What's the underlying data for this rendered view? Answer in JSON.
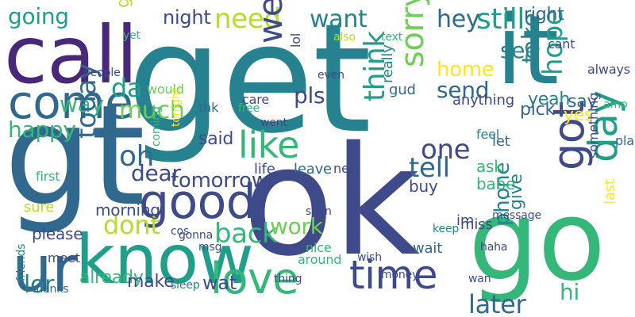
{
  "palette": [
    "#440154",
    "#482878",
    "#3e4a89",
    "#31688e",
    "#26828e",
    "#1f9e89",
    "#35b779",
    "#6ece58",
    "#b5de2b",
    "#fde725"
  ],
  "words": [
    {
      "text": "get",
      "c": "#26828e"
    },
    {
      "text": "gt",
      "c": "#31688e"
    },
    {
      "text": "ok",
      "c": "#3e4a89"
    },
    {
      "text": "call",
      "c": "#482878"
    },
    {
      "text": "it",
      "c": "#26828e"
    },
    {
      "text": "go",
      "c": "#35b779"
    },
    {
      "text": "know",
      "c": "#1f9e89"
    },
    {
      "text": "ur",
      "c": "#31688e"
    },
    {
      "text": "good",
      "c": "#3e4a89"
    },
    {
      "text": "come",
      "c": "#31688e"
    },
    {
      "text": "time",
      "c": "#3e4a89"
    },
    {
      "text": "love",
      "c": "#35b779"
    },
    {
      "text": "got",
      "c": "#3e4a89"
    },
    {
      "text": "day",
      "c": "#1f9e89"
    },
    {
      "text": "like",
      "c": "#35b779"
    },
    {
      "text": "going",
      "c": "#1f9e89"
    },
    {
      "text": "need",
      "c": "#b5de2b"
    },
    {
      "text": "want",
      "c": "#26828e"
    },
    {
      "text": "still",
      "c": "#1f9e89"
    },
    {
      "text": "hey",
      "c": "#31688e"
    },
    {
      "text": "see",
      "c": "#26828e"
    },
    {
      "text": "take",
      "c": "#26828e"
    },
    {
      "text": "hope",
      "c": "#1f9e89"
    },
    {
      "text": "send",
      "c": "#31688e"
    },
    {
      "text": "home",
      "c": "#fde725"
    },
    {
      "text": "sorry",
      "c": "#6ece58"
    },
    {
      "text": "tell",
      "c": "#31688e"
    },
    {
      "text": "one",
      "c": "#3e4a89"
    },
    {
      "text": "think",
      "c": "#1f9e89"
    },
    {
      "text": "well",
      "c": "#3e4a89"
    },
    {
      "text": "pls",
      "c": "#3e4a89"
    },
    {
      "text": "much",
      "c": "#6ece58"
    },
    {
      "text": "oh",
      "c": "#31688e"
    },
    {
      "text": "da",
      "c": "#1f9e89"
    },
    {
      "text": "happy",
      "c": "#35b779"
    },
    {
      "text": "way",
      "c": "#35b779"
    },
    {
      "text": "dont",
      "c": "#b5de2b"
    },
    {
      "text": "back",
      "c": "#35b779"
    },
    {
      "text": "work",
      "c": "#6ece58"
    },
    {
      "text": "later",
      "c": "#31688e"
    },
    {
      "text": "lor",
      "c": "#26828e"
    },
    {
      "text": "hi",
      "c": "#35b779"
    },
    {
      "text": "today",
      "c": "#31688e"
    },
    {
      "text": "dear",
      "c": "#3e4a89"
    },
    {
      "text": "night",
      "c": "#3e4a89"
    },
    {
      "text": "great",
      "c": "#b5de2b"
    },
    {
      "text": "tomorrow",
      "c": "#3e4a89"
    },
    {
      "text": "said",
      "c": "#3e4a89"
    },
    {
      "text": "phone",
      "c": "#26828e"
    },
    {
      "text": "give",
      "c": "#26828e"
    },
    {
      "text": "ask",
      "c": "#35b779"
    },
    {
      "text": "babe",
      "c": "#35b779"
    },
    {
      "text": "buy",
      "c": "#3e4a89"
    },
    {
      "text": "right",
      "c": "#31688e"
    },
    {
      "text": "yeah",
      "c": "#26828e"
    },
    {
      "text": "say",
      "c": "#31688e"
    },
    {
      "text": "yes",
      "c": "#fde725"
    },
    {
      "text": "pick",
      "c": "#31688e"
    },
    {
      "text": "already",
      "c": "#35b779"
    },
    {
      "text": "make",
      "c": "#3e4a89"
    },
    {
      "text": "wat",
      "c": "#3e4a89"
    },
    {
      "text": "morning",
      "c": "#3e4a89"
    },
    {
      "text": "please",
      "c": "#3e4a89"
    },
    {
      "text": "gud",
      "c": "#31688e"
    },
    {
      "text": "anything",
      "c": "#3e4a89"
    },
    {
      "text": "really",
      "c": "#26828e"
    },
    {
      "text": "meet",
      "c": "#3e4a89"
    },
    {
      "text": "miss",
      "c": "#3e4a89"
    },
    {
      "text": "im",
      "c": "#3e4a89"
    },
    {
      "text": "wait",
      "c": "#31688e"
    },
    {
      "text": "keep",
      "c": "#26828e"
    },
    {
      "text": "let",
      "c": "#31688e"
    },
    {
      "text": "feel",
      "c": "#26828e"
    },
    {
      "text": "last",
      "c": "#fde725"
    },
    {
      "text": "place",
      "c": "#31688e"
    },
    {
      "text": "something",
      "c": "#3e4a89"
    },
    {
      "text": "always",
      "c": "#3e4a89"
    },
    {
      "text": "amp",
      "c": "#35b779"
    },
    {
      "text": "life",
      "c": "#3e4a89"
    },
    {
      "text": "leave",
      "c": "#31688e"
    },
    {
      "text": "new",
      "c": "#3e4a89"
    },
    {
      "text": "cos",
      "c": "#3e4a89"
    },
    {
      "text": "gonna",
      "c": "#3e4a89"
    },
    {
      "text": "sure",
      "c": "#b5de2b"
    },
    {
      "text": "would",
      "c": "#6ece58"
    },
    {
      "text": "care",
      "c": "#3e4a89"
    },
    {
      "text": "free",
      "c": "#35b779"
    },
    {
      "text": "thk",
      "c": "#31688e"
    },
    {
      "text": "even",
      "c": "#3e4a89"
    },
    {
      "text": "also",
      "c": "#b5de2b"
    },
    {
      "text": "text",
      "c": "#35b779"
    },
    {
      "text": "cant",
      "c": "#3e4a89"
    },
    {
      "text": "lol",
      "c": "#3e4a89"
    },
    {
      "text": "nice",
      "c": "#35b779"
    },
    {
      "text": "soon",
      "c": "#3e4a89"
    },
    {
      "text": "around",
      "c": "#35b779"
    },
    {
      "text": "first",
      "c": "#35b779"
    },
    {
      "text": "thanks",
      "c": "#31688e"
    },
    {
      "text": "friends",
      "c": "#26828e"
    },
    {
      "text": "sleep",
      "c": "#26828e"
    },
    {
      "text": "msg",
      "c": "#3e4a89"
    },
    {
      "text": "thing",
      "c": "#3e4a89"
    },
    {
      "text": "wish",
      "c": "#3e4a89"
    },
    {
      "text": "money",
      "c": "#3e4a89"
    },
    {
      "text": "message",
      "c": "#3e4a89"
    },
    {
      "text": "haha",
      "c": "#3e4a89"
    },
    {
      "text": "wan",
      "c": "#3e4a89"
    },
    {
      "text": "went",
      "c": "#3e4a89"
    },
    {
      "text": "yet",
      "c": "#35b779"
    },
    {
      "text": "people",
      "c": "#3e4a89"
    },
    {
      "text": "coming",
      "c": "#35b779"
    },
    {
      "text": "tonight",
      "c": "#fde725"
    }
  ]
}
